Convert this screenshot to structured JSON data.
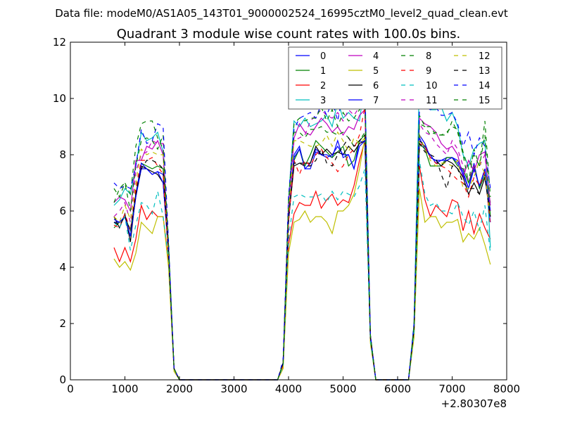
{
  "figure": {
    "suptitle": "Data file: modeM0/AS1A05_143T01_9000002524_16995cztM0_level2_quad_clean.evt"
  },
  "chart_data": {
    "type": "line",
    "title": "Quadrant 3 module wise count rates with 100.0s bins.",
    "xlabel": "",
    "ylabel": "",
    "xlim": [
      0,
      8000
    ],
    "ylim": [
      0,
      12
    ],
    "x_offset_label": "+2.80307e8",
    "xticks": [
      0,
      1000,
      2000,
      3000,
      4000,
      5000,
      6000,
      7000,
      8000
    ],
    "yticks": [
      0,
      2,
      4,
      6,
      8,
      10,
      12
    ],
    "grid": false,
    "legend_placement": "top-right",
    "legend_columns": 4,
    "x": [
      800,
      900,
      1000,
      1100,
      1200,
      1300,
      1400,
      1500,
      1600,
      1700,
      1800,
      1900,
      2000,
      2100,
      2200,
      2300,
      2400,
      2500,
      2600,
      2700,
      2800,
      2900,
      3000,
      3100,
      3200,
      3300,
      3400,
      3500,
      3600,
      3700,
      3800,
      3900,
      4000,
      4100,
      4200,
      4300,
      4400,
      4500,
      4600,
      4700,
      4800,
      4900,
      5000,
      5100,
      5200,
      5300,
      5400,
      5500,
      5600,
      5700,
      5800,
      5900,
      6000,
      6100,
      6200,
      6300,
      6400,
      6500,
      6600,
      6700,
      6800,
      6900,
      7000,
      7100,
      7200,
      7300,
      7400,
      7500,
      7600,
      7700
    ],
    "series": [
      {
        "name": "0",
        "color": "#0000ff",
        "dash": "solid",
        "values": [
          5.6,
          5.6,
          5.8,
          5.1,
          6.5,
          7.5,
          7.5,
          7.3,
          7.4,
          7.3,
          4.5,
          0.4,
          0,
          0,
          0,
          0,
          0,
          0,
          0,
          0,
          0,
          0,
          0,
          0,
          0,
          0,
          0,
          0,
          0,
          0,
          0,
          0.6,
          5.6,
          8.0,
          8.3,
          7.5,
          7.7,
          8.2,
          8.0,
          8.0,
          7.9,
          8.5,
          7.9,
          8.0,
          7.5,
          8.5,
          8.4,
          1.5,
          0,
          0,
          0,
          0,
          0,
          0,
          0,
          1.8,
          8.6,
          8.2,
          8.0,
          7.7,
          7.8,
          7.9,
          7.9,
          7.8,
          7.4,
          6.8,
          7.7,
          6.8,
          7.5,
          6.0
        ]
      },
      {
        "name": "1",
        "color": "#008000",
        "dash": "solid",
        "values": [
          5.4,
          5.6,
          5.8,
          5.3,
          6.6,
          7.7,
          7.6,
          7.5,
          7.6,
          7.5,
          4.6,
          0.4,
          0,
          0,
          0,
          0,
          0,
          0,
          0,
          0,
          0,
          0,
          0,
          0,
          0,
          0,
          0,
          0,
          0,
          0,
          0,
          0.6,
          5.8,
          7.8,
          8.2,
          7.6,
          8.0,
          8.5,
          8.3,
          8.1,
          7.9,
          8.1,
          8.3,
          7.6,
          7.8,
          8.5,
          8.7,
          1.5,
          0,
          0,
          0,
          0,
          0,
          0,
          0,
          1.8,
          8.4,
          8.2,
          7.6,
          7.6,
          7.6,
          7.9,
          7.9,
          7.6,
          7.5,
          7.0,
          7.6,
          6.8,
          7.3,
          6.3
        ]
      },
      {
        "name": "2",
        "color": "#ff0000",
        "dash": "solid",
        "values": [
          4.7,
          4.2,
          4.7,
          4.2,
          5.0,
          6.2,
          5.7,
          6.0,
          5.8,
          5.8,
          4.2,
          0.4,
          0,
          0,
          0,
          0,
          0,
          0,
          0,
          0,
          0,
          0,
          0,
          0,
          0,
          0,
          0,
          0,
          0,
          0,
          0,
          0.5,
          4.8,
          5.9,
          6.3,
          6.2,
          6.2,
          6.7,
          6.1,
          6.4,
          6.6,
          6.2,
          6.4,
          6.3,
          6.9,
          7.8,
          8.5,
          1.4,
          0,
          0,
          0,
          0,
          0,
          0,
          0,
          1.6,
          7.6,
          6.4,
          5.8,
          6.2,
          6.0,
          5.8,
          6.4,
          6.3,
          5.3,
          6.0,
          5.2,
          5.9,
          5.4,
          5.0
        ]
      },
      {
        "name": "3",
        "color": "#00bfbf",
        "dash": "solid",
        "values": [
          6.2,
          6.4,
          6.8,
          6.6,
          7.6,
          8.8,
          8.5,
          8.6,
          8.8,
          8.1,
          4.8,
          0.4,
          0,
          0,
          0,
          0,
          0,
          0,
          0,
          0,
          0,
          0,
          0,
          0,
          0,
          0,
          0,
          0,
          0,
          0,
          0,
          0.6,
          6.4,
          9.2,
          9.0,
          9.3,
          9.0,
          9.1,
          9.2,
          9.4,
          9.0,
          9.9,
          9.3,
          9.5,
          9.3,
          9.2,
          10.6,
          1.6,
          0,
          0,
          0,
          0,
          0,
          0,
          0,
          2.0,
          10.8,
          9.8,
          9.6,
          9.6,
          9.7,
          9.2,
          9.5,
          9.0,
          8.0,
          7.6,
          8.2,
          8.4,
          8.5,
          4.7
        ]
      },
      {
        "name": "4",
        "color": "#bf00bf",
        "dash": "solid",
        "values": [
          6.3,
          6.5,
          6.4,
          6.0,
          7.8,
          7.8,
          8.3,
          8.2,
          8.5,
          8.0,
          4.7,
          0.4,
          0,
          0,
          0,
          0,
          0,
          0,
          0,
          0,
          0,
          0,
          0,
          0,
          0,
          0,
          0,
          0,
          0,
          0,
          0,
          0.6,
          6.2,
          8.6,
          9.1,
          8.8,
          8.7,
          9.0,
          9.3,
          9.1,
          8.8,
          9.0,
          8.7,
          9.0,
          8.9,
          9.4,
          9.6,
          1.6,
          0,
          0,
          0,
          0,
          0,
          0,
          0,
          1.9,
          9.3,
          9.1,
          9.0,
          8.8,
          8.4,
          8.2,
          8.3,
          8.0,
          7.2,
          7.8,
          7.4,
          8.0,
          8.1,
          6.2
        ]
      },
      {
        "name": "5",
        "color": "#bfbf00",
        "dash": "solid",
        "values": [
          4.3,
          4.0,
          4.2,
          3.9,
          4.5,
          5.6,
          5.4,
          5.2,
          5.8,
          5.8,
          4.0,
          0.3,
          0,
          0,
          0,
          0,
          0,
          0,
          0,
          0,
          0,
          0,
          0,
          0,
          0,
          0,
          0,
          0,
          0,
          0,
          0,
          0.4,
          4.5,
          5.6,
          5.7,
          6.0,
          5.6,
          5.8,
          5.8,
          5.6,
          5.2,
          6.0,
          6.0,
          6.2,
          6.6,
          7.5,
          8.6,
          1.3,
          0,
          0,
          0,
          0,
          0,
          0,
          0,
          1.5,
          6.8,
          5.6,
          5.8,
          5.8,
          5.4,
          5.6,
          5.6,
          5.7,
          4.9,
          5.2,
          5.0,
          5.4,
          4.8,
          4.1
        ]
      },
      {
        "name": "6",
        "color": "#000000",
        "dash": "solid",
        "values": [
          5.8,
          5.4,
          5.9,
          4.9,
          6.6,
          7.6,
          7.5,
          7.4,
          7.3,
          7.0,
          4.5,
          0.4,
          0,
          0,
          0,
          0,
          0,
          0,
          0,
          0,
          0,
          0,
          0,
          0,
          0,
          0,
          0,
          0,
          0,
          0,
          0,
          0.6,
          5.7,
          7.6,
          7.7,
          7.7,
          7.7,
          8.3,
          8.0,
          8.2,
          8.0,
          8.1,
          8.0,
          8.3,
          8.1,
          8.4,
          8.5,
          1.5,
          0,
          0,
          0,
          0,
          0,
          0,
          0,
          1.8,
          8.5,
          8.3,
          7.9,
          7.8,
          7.6,
          7.8,
          7.7,
          7.5,
          7.2,
          6.6,
          7.0,
          6.6,
          7.2,
          5.8
        ]
      },
      {
        "name": "7",
        "color": "#0000ff",
        "dash": "solid",
        "values": [
          5.7,
          5.6,
          5.8,
          5.1,
          6.5,
          7.7,
          7.5,
          7.3,
          7.4,
          7.0,
          4.5,
          0.4,
          0,
          0,
          0,
          0,
          0,
          0,
          0,
          0,
          0,
          0,
          0,
          0,
          0,
          0,
          0,
          0,
          0,
          0,
          0,
          0.6,
          5.6,
          7.9,
          8.2,
          7.5,
          7.5,
          8.1,
          8.0,
          7.9,
          8.0,
          8.3,
          8.0,
          8.0,
          7.5,
          8.3,
          8.5,
          1.5,
          0,
          0,
          0,
          0,
          0,
          0,
          0,
          1.8,
          8.7,
          8.4,
          7.9,
          7.8,
          7.8,
          7.8,
          7.9,
          7.7,
          7.3,
          6.8,
          7.5,
          6.9,
          7.5,
          5.6
        ]
      },
      {
        "name": "8",
        "color": "#008000",
        "dash": "dashed",
        "values": [
          6.3,
          6.8,
          7.0,
          6.0,
          7.6,
          8.5,
          8.6,
          8.5,
          8.2,
          8.7,
          4.7,
          0.4,
          0,
          0,
          0,
          0,
          0,
          0,
          0,
          0,
          0,
          0,
          0,
          0,
          0,
          0,
          0,
          0,
          0,
          0,
          0,
          0.6,
          6.1,
          8.8,
          8.8,
          8.6,
          8.9,
          8.9,
          9.0,
          8.8,
          8.8,
          8.7,
          8.8,
          8.6,
          8.3,
          8.5,
          8.8,
          1.5,
          0,
          0,
          0,
          0,
          0,
          0,
          0,
          1.9,
          9.4,
          9.0,
          9.0,
          8.7,
          8.7,
          8.8,
          9.0,
          8.9,
          8.1,
          7.5,
          8.0,
          7.6,
          9.2,
          6.5
        ]
      },
      {
        "name": "9",
        "color": "#ff0000",
        "dash": "dashed",
        "values": [
          5.5,
          5.4,
          5.9,
          5.3,
          6.8,
          7.8,
          7.8,
          7.9,
          7.6,
          7.3,
          4.4,
          0.4,
          0,
          0,
          0,
          0,
          0,
          0,
          0,
          0,
          0,
          0,
          0,
          0,
          0,
          0,
          0,
          0,
          0,
          0,
          0,
          0.6,
          5.6,
          7.8,
          7.3,
          7.8,
          7.6,
          8.0,
          8.2,
          7.9,
          7.7,
          7.4,
          7.6,
          8.0,
          8.2,
          8.7,
          9.7,
          1.5,
          0,
          0,
          0,
          0,
          0,
          0,
          0,
          1.8,
          8.4,
          8.3,
          7.9,
          7.7,
          7.6,
          7.5,
          7.3,
          7.1,
          7.0,
          6.5,
          7.2,
          6.9,
          7.4,
          5.5
        ]
      },
      {
        "name": "10",
        "color": "#00bfbf",
        "dash": "dashed",
        "values": [
          5.6,
          5.4,
          5.8,
          4.6,
          5.5,
          6.3,
          6.2,
          5.9,
          6.7,
          5.8,
          4.3,
          0.4,
          0,
          0,
          0,
          0,
          0,
          0,
          0,
          0,
          0,
          0,
          0,
          0,
          0,
          0,
          0,
          0,
          0,
          0,
          0,
          0.5,
          5.0,
          6.5,
          6.6,
          6.5,
          6.5,
          6.5,
          6.6,
          6.3,
          6.7,
          6.4,
          6.7,
          6.6,
          6.5,
          6.9,
          7.5,
          1.4,
          0,
          0,
          0,
          0,
          0,
          0,
          0,
          1.7,
          7.8,
          6.6,
          6.2,
          6.3,
          6.0,
          6.0,
          5.9,
          6.3,
          5.8,
          5.5,
          6.0,
          5.3,
          6.2,
          4.5
        ]
      },
      {
        "name": "11",
        "color": "#bf00bf",
        "dash": "dashed",
        "values": [
          5.8,
          6.0,
          6.3,
          5.6,
          7.4,
          8.0,
          8.1,
          8.5,
          8.4,
          8.4,
          4.6,
          0.4,
          0,
          0,
          0,
          0,
          0,
          0,
          0,
          0,
          0,
          0,
          0,
          0,
          0,
          0,
          0,
          0,
          0,
          0,
          0,
          0.6,
          6.0,
          8.5,
          8.6,
          8.7,
          9.2,
          9.4,
          9.6,
          9.4,
          9.3,
          9.5,
          9.2,
          9.6,
          9.4,
          9.7,
          9.8,
          1.6,
          0,
          0,
          0,
          0,
          0,
          0,
          0,
          1.9,
          9.1,
          8.8,
          8.7,
          8.4,
          8.2,
          8.0,
          8.5,
          8.2,
          7.6,
          7.1,
          7.6,
          7.6,
          8.0,
          6.0
        ]
      },
      {
        "name": "12",
        "color": "#bfbf00",
        "dash": "dashed",
        "values": [
          5.8,
          5.6,
          6.2,
          5.7,
          7.0,
          8.2,
          8.0,
          8.1,
          8.0,
          8.0,
          4.5,
          0.4,
          0,
          0,
          0,
          0,
          0,
          0,
          0,
          0,
          0,
          0,
          0,
          0,
          0,
          0,
          0,
          0,
          0,
          0,
          0,
          0.6,
          5.9,
          8.5,
          8.5,
          8.4,
          8.3,
          8.3,
          8.4,
          8.7,
          8.3,
          8.8,
          8.5,
          8.1,
          8.6,
          8.4,
          8.6,
          1.5,
          0,
          0,
          0,
          0,
          0,
          0,
          0,
          1.8,
          8.7,
          8.2,
          7.8,
          7.6,
          7.7,
          7.7,
          7.6,
          7.8,
          6.8,
          6.8,
          7.2,
          7.8,
          7.3,
          5.8
        ]
      },
      {
        "name": "13",
        "color": "#000000",
        "dash": "dashed",
        "values": [
          5.6,
          5.5,
          5.8,
          5.3,
          6.6,
          7.5,
          7.8,
          7.8,
          7.7,
          7.5,
          4.5,
          0.4,
          0,
          0,
          0,
          0,
          0,
          0,
          0,
          0,
          0,
          0,
          0,
          0,
          0,
          0,
          0,
          0,
          0,
          0,
          0,
          0.6,
          5.7,
          7.7,
          7.7,
          7.6,
          7.6,
          7.8,
          8.2,
          7.7,
          7.6,
          8.0,
          8.3,
          8.6,
          8.3,
          8.5,
          8.7,
          1.5,
          0,
          0,
          0,
          0,
          0,
          0,
          0,
          1.8,
          8.4,
          8.1,
          8.0,
          7.9,
          7.3,
          6.8,
          7.6,
          7.5,
          7.0,
          6.8,
          6.8,
          6.6,
          7.2,
          5.8
        ]
      },
      {
        "name": "14",
        "color": "#0000ff",
        "dash": "dashed",
        "values": [
          7.0,
          6.8,
          6.9,
          6.8,
          7.6,
          8.9,
          8.4,
          8.5,
          9.1,
          9.0,
          4.9,
          0.4,
          0,
          0,
          0,
          0,
          0,
          0,
          0,
          0,
          0,
          0,
          0,
          0,
          0,
          0,
          0,
          0,
          0,
          0,
          0,
          0.7,
          6.5,
          8.9,
          9.3,
          9.4,
          9.5,
          9.3,
          9.8,
          9.4,
          9.9,
          9.2,
          10.2,
          10.2,
          9.8,
          10.0,
          10.3,
          1.6,
          0,
          0,
          0,
          0,
          0,
          0,
          0,
          2.0,
          9.6,
          9.7,
          9.6,
          9.7,
          9.4,
          9.4,
          9.5,
          9.1,
          8.3,
          8.8,
          8.0,
          8.6,
          8.3,
          6.8
        ]
      },
      {
        "name": "15",
        "color": "#008000",
        "dash": "dashed",
        "values": [
          6.8,
          6.5,
          7.0,
          6.6,
          8.3,
          9.1,
          9.2,
          9.2,
          8.6,
          8.2,
          4.8,
          0.4,
          0,
          0,
          0,
          0,
          0,
          0,
          0,
          0,
          0,
          0,
          0,
          0,
          0,
          0,
          0,
          0,
          0,
          0,
          0,
          0.6,
          6.3,
          9.1,
          9.3,
          9.2,
          9.3,
          9.3,
          9.7,
          9.2,
          9.6,
          9.0,
          9.5,
          9.2,
          9.3,
          9.6,
          9.9,
          1.6,
          0,
          0,
          0,
          0,
          0,
          0,
          0,
          1.9,
          9.1,
          9.0,
          8.7,
          8.8,
          8.7,
          8.7,
          9.2,
          8.8,
          8.0,
          7.0,
          8.2,
          7.6,
          8.7,
          5.8
        ]
      }
    ]
  }
}
